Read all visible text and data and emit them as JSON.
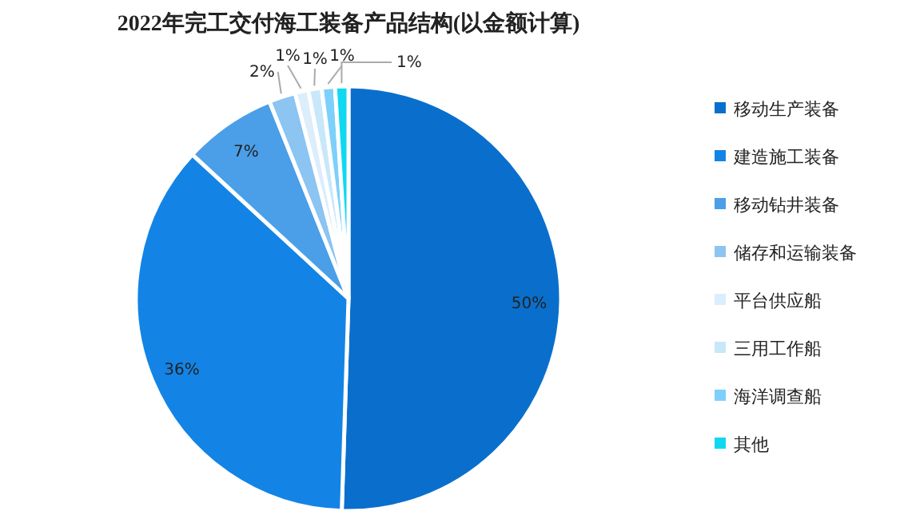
{
  "chart_data": {
    "type": "pie",
    "title": "2022年完工交付海工装备产品结构(以金额计算)",
    "categories": [
      "移动生产装备",
      "建造施工装备",
      "移动钻井装备",
      "储存和运输装备",
      "平台供应船",
      "三用工作船",
      "海洋调查船",
      "其他"
    ],
    "values": [
      50,
      36,
      7,
      2,
      1,
      1,
      1,
      1
    ],
    "colors": [
      "#0a6fcc",
      "#1384e6",
      "#4a9fe8",
      "#8cc4f2",
      "#dcedfb",
      "#c8e8fa",
      "#7dd0fb",
      "#10d8f0"
    ],
    "value_labels": [
      "50%",
      "36%",
      "7%",
      "2%",
      "1%",
      "1%",
      "1%",
      "1%"
    ],
    "legend": "right"
  }
}
